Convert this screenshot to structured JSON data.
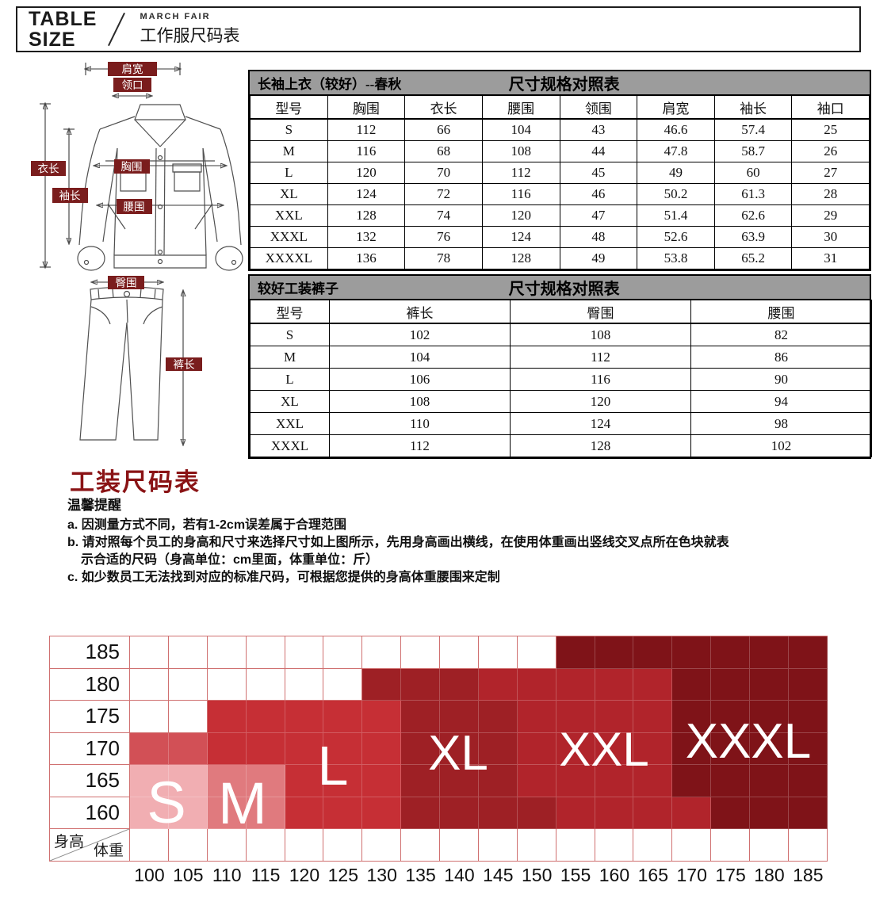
{
  "theme": {
    "label_maroon": "#7a1d1d",
    "title_red": "#8a1315",
    "bar_gray": "#9c9c9c",
    "grid_line": "#d07070"
  },
  "header": {
    "brand_line1": "TABLE",
    "brand_line2": "SIZE",
    "subtitle_en": "MARCH FAIR",
    "subtitle_cn": "工作服尺码表"
  },
  "diagram": {
    "labels": {
      "shoulder": "肩宽",
      "collar": "领口",
      "body_length": "衣长",
      "sleeve_length": "袖长",
      "chest": "胸围",
      "waist": "腰围",
      "hip": "臀围",
      "pants_length": "裤长"
    }
  },
  "tables": [
    {
      "title_left": "长袖上衣（较好）--春秋",
      "title_right": "尺寸规格对照表",
      "columns": [
        "型号",
        "胸围",
        "衣长",
        "腰围",
        "领围",
        "肩宽",
        "袖长",
        "袖口"
      ],
      "rows": [
        [
          "S",
          "112",
          "66",
          "104",
          "43",
          "46.6",
          "57.4",
          "25"
        ],
        [
          "M",
          "116",
          "68",
          "108",
          "44",
          "47.8",
          "58.7",
          "26"
        ],
        [
          "L",
          "120",
          "70",
          "112",
          "45",
          "49",
          "60",
          "27"
        ],
        [
          "XL",
          "124",
          "72",
          "116",
          "46",
          "50.2",
          "61.3",
          "28"
        ],
        [
          "XXL",
          "128",
          "74",
          "120",
          "47",
          "51.4",
          "62.6",
          "29"
        ],
        [
          "XXXL",
          "132",
          "76",
          "124",
          "48",
          "52.6",
          "63.9",
          "30"
        ],
        [
          "XXXXL",
          "136",
          "78",
          "128",
          "49",
          "53.8",
          "65.2",
          "31"
        ]
      ]
    },
    {
      "title_left": "较好工装裤子",
      "title_right": "尺寸规格对照表",
      "columns": [
        "型号",
        "裤长",
        "臀围",
        "腰围"
      ],
      "rows": [
        [
          "S",
          "102",
          "108",
          "82"
        ],
        [
          "M",
          "104",
          "112",
          "86"
        ],
        [
          "L",
          "106",
          "116",
          "90"
        ],
        [
          "XL",
          "108",
          "120",
          "94"
        ],
        [
          "XXL",
          "110",
          "124",
          "98"
        ],
        [
          "XXXL",
          "112",
          "128",
          "102"
        ]
      ]
    }
  ],
  "section": {
    "title": "工装尺码表"
  },
  "notes": {
    "heading": "温馨提醒",
    "lines": [
      {
        "text": "a. 因测量方式不同，若有1-2cm误差属于合理范围",
        "indent": false
      },
      {
        "text": "b. 请对照每个员工的身高和尺寸来选择尺寸如上图所示，先用身高画出横线，在使用体重画出竖线交叉点所在色块就表",
        "indent": false
      },
      {
        "text": "示合适的尺码（身高单位：cm里面，体重单位：斤）",
        "indent": true
      },
      {
        "text": "c. 如少数员工无法找到对应的标准尺码，可根据您提供的身高体重腰围来定制",
        "indent": false
      }
    ]
  },
  "chart_data": {
    "type": "heatmap",
    "x_axis_label": "体重",
    "y_axis_label": "身高",
    "x_ticks": [
      "100",
      "105",
      "110",
      "115",
      "120",
      "125",
      "130",
      "135",
      "140",
      "145",
      "150",
      "155",
      "160",
      "165",
      "170",
      "175",
      "180",
      "185"
    ],
    "y_ticks": [
      "185",
      "180",
      "175",
      "170",
      "165",
      "160"
    ],
    "sizes": [
      "S",
      "M",
      "L",
      "XL",
      "XXL",
      "XXXL"
    ],
    "colors": {
      "S": "#f1aeb2",
      "S_dark": "#d25056",
      "M": "#e07a7e",
      "L": "#c62f35",
      "XL": "#9e2025",
      "XXL": "#b1242b",
      "XXXL": "#7f1318"
    },
    "cells": [
      [
        "",
        "",
        "",
        "",
        "",
        "",
        "",
        "",
        "",
        "",
        "",
        "XXXL",
        "XXXL",
        "XXXL",
        "XXXL",
        "XXXL",
        "XXXL",
        "XXXL"
      ],
      [
        "",
        "",
        "",
        "",
        "",
        "",
        "XL",
        "XL",
        "XL",
        "XXL",
        "XXL",
        "XXL",
        "XXL",
        "XXL",
        "XXXL",
        "XXXL",
        "XXXL",
        "XXXL"
      ],
      [
        "",
        "",
        "L",
        "L",
        "L",
        "L",
        "L",
        "XL",
        "XL",
        "XL",
        "XXL",
        "XXL",
        "XXL",
        "XXL",
        "XXXL",
        "XXXL",
        "XXXL",
        "XXXL"
      ],
      [
        "S_dark",
        "S_dark",
        "L",
        "L",
        "L",
        "L",
        "L",
        "XL",
        "XL",
        "XL",
        "XXL",
        "XXL",
        "XXL",
        "XXL",
        "XXXL",
        "XXXL",
        "XXXL",
        "XXXL"
      ],
      [
        "S",
        "S",
        "M",
        "M",
        "L",
        "L",
        "L",
        "XL",
        "XL",
        "XL",
        "XXL",
        "XXL",
        "XXL",
        "XXL",
        "XXXL",
        "XXXL",
        "XXXL",
        "XXXL"
      ],
      [
        "S",
        "S",
        "M",
        "M",
        "L",
        "L",
        "L",
        "XL",
        "XL",
        "XL",
        "XL",
        "XXL",
        "XXL",
        "XXL",
        "XXL",
        "XXXL",
        "XXXL",
        "XXXL"
      ]
    ],
    "size_labels": [
      {
        "text": "S",
        "x": 210,
        "y": 1013,
        "size": 74
      },
      {
        "text": "M",
        "x": 306,
        "y": 1014,
        "size": 74
      },
      {
        "text": "L",
        "x": 420,
        "y": 966,
        "size": 70
      },
      {
        "text": "XL",
        "x": 578,
        "y": 951,
        "size": 62
      },
      {
        "text": "XXL",
        "x": 762,
        "y": 946,
        "size": 60
      },
      {
        "text": "XXXL",
        "x": 944,
        "y": 936,
        "size": 62
      }
    ]
  }
}
